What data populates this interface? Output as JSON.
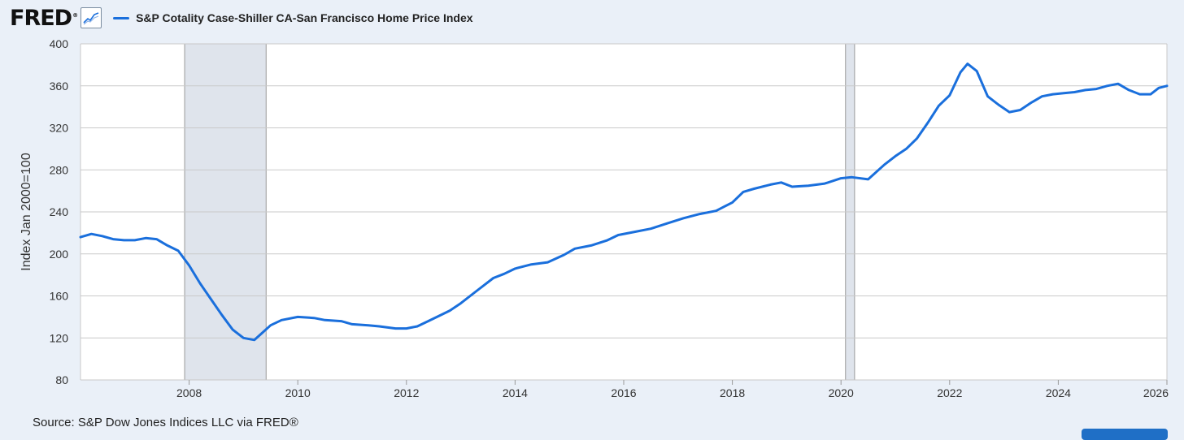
{
  "header": {
    "logo_text": "FRED",
    "logo_reg": "®",
    "chart_icon": "line-chart-icon",
    "legend_label": "S&P Cotality Case-Shiller CA-San Francisco Home Price Index"
  },
  "source": "Source: S&P Dow Jones Indices LLC via FRED®",
  "colors": {
    "series": "#1a6fdc",
    "recession": "#dfe4ec",
    "background": "#eaf0f8",
    "button": "#1f6fc6"
  },
  "chart_data": {
    "type": "line",
    "title": "",
    "xlabel": "",
    "ylabel": "Index Jan 2000=100",
    "xlim": [
      2006.0,
      2026.0
    ],
    "ylim": [
      80,
      400
    ],
    "yticks": [
      80,
      120,
      160,
      200,
      240,
      280,
      320,
      360,
      400
    ],
    "xticks": [
      2008,
      2010,
      2012,
      2014,
      2016,
      2018,
      2020,
      2022,
      2024,
      2026
    ],
    "grid": true,
    "legend_position": "top-left",
    "recessions": [
      [
        2007.917,
        2009.417
      ],
      [
        2020.083,
        2020.25
      ]
    ],
    "series": [
      {
        "name": "S&P Cotality Case-Shiller CA-San Francisco Home Price Index",
        "x": [
          2006.0,
          2006.2,
          2006.4,
          2006.6,
          2006.8,
          2007.0,
          2007.2,
          2007.4,
          2007.6,
          2007.8,
          2008.0,
          2008.2,
          2008.4,
          2008.6,
          2008.8,
          2009.0,
          2009.2,
          2009.35,
          2009.5,
          2009.7,
          2010.0,
          2010.3,
          2010.5,
          2010.8,
          2011.0,
          2011.3,
          2011.5,
          2011.8,
          2012.0,
          2012.2,
          2012.4,
          2012.6,
          2012.8,
          2013.0,
          2013.3,
          2013.6,
          2013.8,
          2014.0,
          2014.3,
          2014.6,
          2014.9,
          2015.1,
          2015.4,
          2015.7,
          2015.9,
          2016.2,
          2016.5,
          2016.8,
          2017.1,
          2017.4,
          2017.7,
          2018.0,
          2018.2,
          2018.4,
          2018.7,
          2018.9,
          2019.1,
          2019.4,
          2019.7,
          2020.0,
          2020.2,
          2020.5,
          2020.8,
          2021.0,
          2021.2,
          2021.4,
          2021.6,
          2021.8,
          2022.0,
          2022.2,
          2022.33,
          2022.5,
          2022.7,
          2022.9,
          2023.1,
          2023.3,
          2023.5,
          2023.7,
          2023.9,
          2024.1,
          2024.3,
          2024.5,
          2024.7,
          2024.9,
          2025.1,
          2025.3,
          2025.5,
          2025.7,
          2025.85,
          2026.0
        ],
        "values": [
          216,
          219,
          217,
          214,
          213,
          213,
          215,
          214,
          208,
          203,
          189,
          172,
          157,
          142,
          128,
          120,
          118,
          125,
          132,
          137,
          140,
          139,
          137,
          136,
          133,
          132,
          131,
          129,
          129,
          131,
          136,
          141,
          146,
          153,
          165,
          177,
          181,
          186,
          190,
          192,
          199,
          205,
          208,
          213,
          218,
          221,
          224,
          229,
          234,
          238,
          241,
          249,
          259,
          262,
          266,
          268,
          264,
          265,
          267,
          272,
          273,
          271,
          285,
          293,
          300,
          310,
          325,
          341,
          351,
          373,
          381,
          374,
          350,
          342,
          335,
          337,
          344,
          350,
          352,
          353,
          354,
          356,
          357,
          360,
          362,
          356,
          352,
          352,
          358,
          360
        ]
      }
    ]
  }
}
